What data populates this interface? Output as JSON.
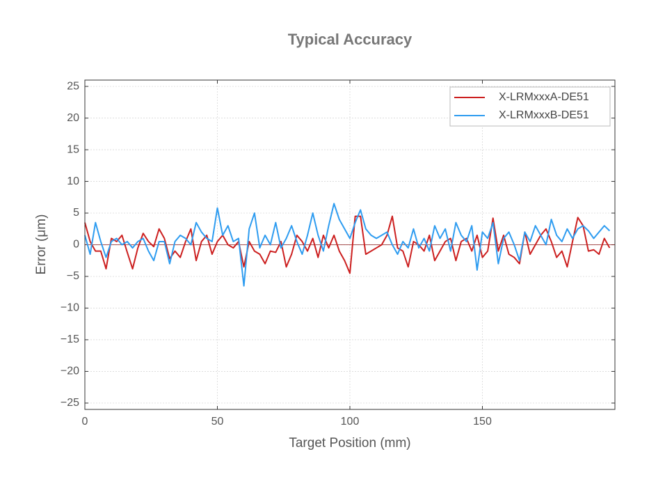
{
  "chart_data": {
    "type": "line",
    "title": "Typical Accuracy",
    "x_label": "Target Position (mm)",
    "y_label": "Error (μm)",
    "x": [
      0,
      2,
      4,
      6,
      8,
      10,
      12,
      14,
      16,
      18,
      20,
      22,
      24,
      26,
      28,
      30,
      32,
      34,
      36,
      38,
      40,
      42,
      44,
      46,
      48,
      50,
      52,
      54,
      56,
      58,
      60,
      62,
      64,
      66,
      68,
      70,
      72,
      74,
      76,
      78,
      80,
      82,
      84,
      86,
      88,
      90,
      92,
      94,
      96,
      98,
      100,
      102,
      104,
      106,
      108,
      110,
      112,
      114,
      116,
      118,
      120,
      122,
      124,
      126,
      128,
      130,
      132,
      134,
      136,
      138,
      140,
      142,
      144,
      146,
      148,
      150,
      152,
      154,
      156,
      158,
      160,
      162,
      164,
      166,
      168,
      170,
      172,
      174,
      176,
      178,
      180,
      182,
      184,
      186,
      188,
      190,
      192,
      194,
      196,
      198
    ],
    "series": [
      {
        "name": "X-LRMxxxA-DE51",
        "color": "#cc1f1f",
        "values": [
          3.5,
          0.5,
          -1.0,
          -1.0,
          -3.8,
          1.0,
          0.5,
          1.5,
          -1.2,
          -3.8,
          -0.5,
          1.8,
          0.5,
          -0.3,
          2.5,
          1.0,
          -2.2,
          -1.0,
          -2.0,
          0.5,
          2.5,
          -2.5,
          0.5,
          1.5,
          -1.5,
          0.5,
          1.5,
          0.0,
          -0.5,
          0.5,
          -3.5,
          0.5,
          -1.0,
          -1.5,
          -3.0,
          -1.0,
          -1.2,
          0.5,
          -3.5,
          -1.5,
          1.5,
          0.5,
          -1.0,
          1.0,
          -2.0,
          1.5,
          -0.5,
          1.5,
          -1.0,
          -2.5,
          -4.5,
          4.5,
          4.5,
          -1.5,
          -1.0,
          -0.5,
          0.0,
          1.5,
          4.5,
          -0.5,
          -1.0,
          -3.5,
          0.5,
          0.0,
          -1.0,
          1.5,
          -2.5,
          -1.0,
          0.5,
          1.0,
          -2.5,
          0.5,
          1.0,
          -1.0,
          1.5,
          -2.0,
          -1.0,
          4.2,
          -1.0,
          1.5,
          -1.5,
          -2.0,
          -3.0,
          2.0,
          -1.5,
          0.0,
          1.5,
          2.5,
          0.5,
          -2.0,
          -1.0,
          -3.5,
          0.5,
          4.3,
          3.0,
          -1.0,
          -0.8,
          -1.5,
          1.0,
          -0.5
        ]
      },
      {
        "name": "X-LRMxxxB-DE51",
        "color": "#2e9cf0",
        "values": [
          1.5,
          -1.5,
          3.5,
          0.5,
          -2.0,
          0.5,
          1.0,
          0.0,
          0.5,
          -0.5,
          0.5,
          1.0,
          -1.0,
          -2.5,
          0.5,
          0.5,
          -3.0,
          0.5,
          1.5,
          1.0,
          0.0,
          3.5,
          2.0,
          1.0,
          0.5,
          5.8,
          1.5,
          3.0,
          0.5,
          1.0,
          -6.5,
          2.5,
          5.0,
          -0.5,
          1.5,
          0.0,
          3.5,
          -0.5,
          1.0,
          3.0,
          0.5,
          -1.5,
          1.5,
          5.0,
          1.5,
          -1.0,
          3.0,
          6.5,
          4.0,
          2.5,
          1.0,
          3.5,
          5.5,
          2.5,
          1.5,
          1.0,
          1.5,
          2.0,
          0.0,
          -1.5,
          0.5,
          -0.5,
          2.5,
          -0.5,
          1.0,
          -1.0,
          3.0,
          1.0,
          2.5,
          -1.0,
          3.5,
          1.5,
          0.5,
          3.0,
          -4.0,
          2.0,
          1.0,
          3.5,
          -3.0,
          1.0,
          2.0,
          0.0,
          -2.5,
          2.0,
          0.5,
          3.0,
          1.5,
          0.0,
          4.0,
          1.5,
          0.5,
          2.5,
          1.0,
          2.5,
          3.0,
          2.2,
          1.0,
          2.0,
          3.0,
          2.2
        ]
      }
    ],
    "xlim": [
      0,
      200
    ],
    "ylim": [
      -26,
      26
    ],
    "xticks": [
      0,
      50,
      100,
      150
    ],
    "yticks": [
      {
        "value": -25,
        "label": "−25"
      },
      {
        "value": -20,
        "label": "−20"
      },
      {
        "value": -15,
        "label": "−15"
      },
      {
        "value": -10,
        "label": "−10"
      },
      {
        "value": -5,
        "label": "−5"
      },
      0,
      5,
      10,
      15,
      20,
      25
    ],
    "grid": true,
    "legend": "upper right"
  }
}
